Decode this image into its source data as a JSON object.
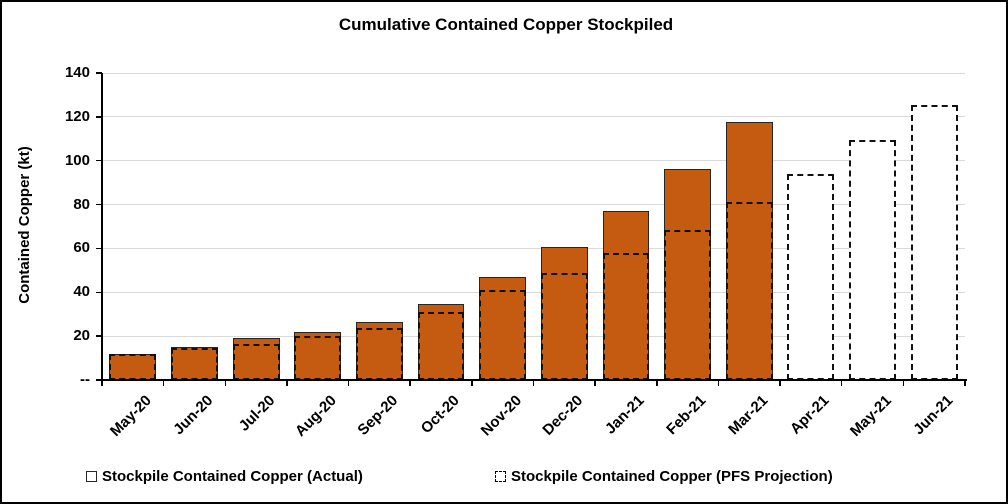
{
  "chart_data": {
    "type": "bar",
    "title": "Cumulative Contained Copper Stockpiled",
    "ylabel": "Contained Copper (kt)",
    "xlabel": "",
    "ylim": [
      0,
      140
    ],
    "ytick_step": 20,
    "ytick_labels": [
      "--",
      "20",
      "40",
      "60",
      "80",
      "100",
      "120",
      "140"
    ],
    "grid": true,
    "legend_position": "bottom",
    "categories": [
      "May-20",
      "Jun-20",
      "Jul-20",
      "Aug-20",
      "Sep-20",
      "Oct-20",
      "Nov-20",
      "Dec-20",
      "Jan-21",
      "Feb-21",
      "Mar-21",
      "Apr-21",
      "May-21",
      "Jun-21"
    ],
    "series": [
      {
        "name": "Stockpile Contained Copper (Actual)",
        "style": "solid-fill",
        "color": "#C55A11",
        "values": [
          12,
          15,
          19,
          22,
          26.5,
          34.5,
          47,
          60.5,
          77,
          96,
          117.5,
          null,
          null,
          null
        ]
      },
      {
        "name": "Stockpile Contained Copper (PFS Projection)",
        "style": "dashed-outline",
        "color": "#FFFFFF",
        "values": [
          12,
          14.5,
          16.5,
          20,
          23.5,
          31,
          41,
          49,
          58,
          68.5,
          81,
          94,
          109.5,
          125.5
        ]
      }
    ]
  },
  "colors": {
    "bar_fill": "#C55A11",
    "bar_border": "#262626",
    "dashed_line": "#111111",
    "gridline": "#D9D9D9",
    "axis": "#000000",
    "text": "#000000",
    "background": "#FFFFFF"
  }
}
